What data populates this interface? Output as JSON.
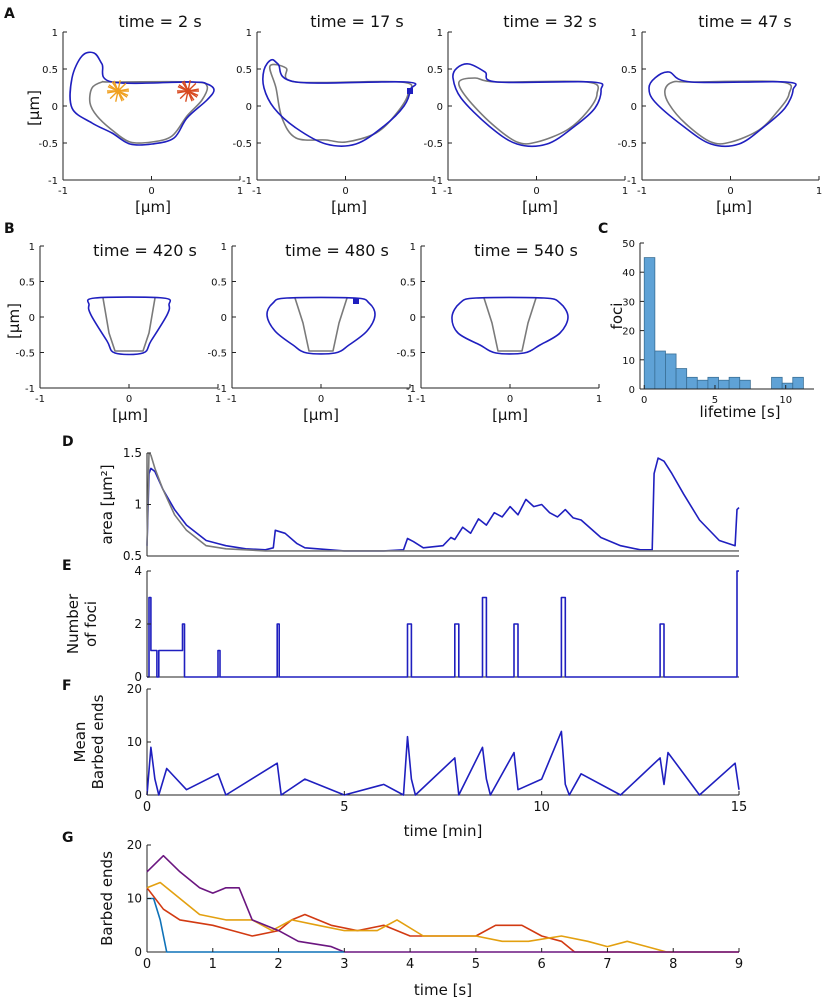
{
  "colors": {
    "blue": "#1f1fbf",
    "gray": "#7a7a7a",
    "hist": "#5fa2d6",
    "red": "#d23a12",
    "orange": "#e3a010",
    "purple": "#6b1680",
    "teal": "#0f72b8",
    "star_orange": "#f0a020",
    "star_red": "#d84a20"
  },
  "panels": {
    "A": {
      "label": "A",
      "times": [
        "time = 2 s",
        "time = 17 s",
        "time = 32 s",
        "time = 47 s"
      ],
      "xlabel": "[μm]",
      "ylabel": "[μm]",
      "xticks": [
        "-1",
        "0",
        "1"
      ],
      "yticks": [
        "-1",
        "-0.5",
        "0",
        "0.5",
        "1"
      ]
    },
    "B": {
      "label": "B",
      "times": [
        "time = 420 s",
        "time = 480 s",
        "time = 540 s"
      ],
      "xlabel": "[μm]",
      "ylabel": "[μm]",
      "xticks": [
        "-1",
        "0",
        "1"
      ],
      "yticks": [
        "-1",
        "-0.5",
        "0",
        "0.5",
        "1"
      ]
    }
  },
  "chart_data": [
    {
      "panel": "C",
      "type": "bar",
      "title": "",
      "xlabel": "lifetime [s]",
      "ylabel": "foci",
      "xlim": [
        -0.3,
        12
      ],
      "ylim": [
        0,
        50
      ],
      "xticks": [
        "0",
        "5",
        "10"
      ],
      "yticks": [
        "0",
        "10",
        "20",
        "30",
        "40",
        "50"
      ],
      "bin_width": 0.75,
      "bin_starts": [
        0,
        0.75,
        1.5,
        2.25,
        3.0,
        3.75,
        4.5,
        5.25,
        6.0,
        6.75,
        7.5,
        8.25,
        9.0,
        9.75,
        10.5,
        11.25
      ],
      "values": [
        45,
        13,
        12,
        7,
        4,
        3,
        4,
        3,
        4,
        3,
        0,
        0,
        4,
        2,
        4,
        0
      ]
    },
    {
      "panel": "D",
      "type": "line",
      "ylabel": "area [μm²]",
      "xlim": [
        0,
        15
      ],
      "ylim": [
        0.5,
        1.5
      ],
      "yticks": [
        "0.5",
        "1",
        "1.5"
      ],
      "series": [
        {
          "name": "area",
          "color": "blue",
          "x": [
            0,
            0.05,
            0.1,
            0.2,
            0.4,
            0.7,
            1.0,
            1.5,
            1.8,
            2.0,
            2.5,
            3.0,
            3.2,
            3.25,
            3.5,
            3.8,
            4.0,
            5.0,
            6.0,
            6.5,
            6.6,
            6.75,
            7.0,
            7.5,
            7.7,
            7.8,
            8.0,
            8.2,
            8.4,
            8.6,
            8.8,
            9.0,
            9.2,
            9.4,
            9.6,
            9.8,
            10.0,
            10.2,
            10.4,
            10.6,
            10.8,
            11.0,
            11.5,
            12.0,
            12.5,
            12.8,
            12.85,
            12.95,
            13.1,
            13.3,
            13.6,
            14.0,
            14.5,
            14.9,
            14.95,
            15.0
          ],
          "y": [
            0.6,
            1.3,
            1.35,
            1.32,
            1.15,
            0.95,
            0.8,
            0.65,
            0.62,
            0.6,
            0.57,
            0.56,
            0.58,
            0.75,
            0.72,
            0.62,
            0.58,
            0.55,
            0.55,
            0.56,
            0.67,
            0.64,
            0.58,
            0.6,
            0.68,
            0.66,
            0.78,
            0.72,
            0.86,
            0.8,
            0.92,
            0.88,
            0.98,
            0.9,
            1.05,
            0.98,
            1.0,
            0.92,
            0.88,
            0.95,
            0.87,
            0.85,
            0.68,
            0.6,
            0.56,
            0.56,
            1.3,
            1.45,
            1.42,
            1.3,
            1.1,
            0.85,
            0.65,
            0.6,
            0.95,
            0.97
          ]
        },
        {
          "name": "area (smooth)",
          "color": "gray",
          "x": [
            0,
            0.05,
            0.1,
            0.2,
            0.4,
            0.7,
            1.0,
            1.5,
            2.0,
            3.0,
            5.0,
            8.0,
            12.0,
            15.0
          ],
          "y": [
            0.6,
            1.5,
            1.48,
            1.35,
            1.15,
            0.9,
            0.75,
            0.6,
            0.57,
            0.55,
            0.55,
            0.55,
            0.55,
            0.55
          ]
        }
      ]
    },
    {
      "panel": "E",
      "type": "line",
      "ylabel": "Number\nof foci",
      "xlim": [
        0,
        15
      ],
      "ylim": [
        0,
        4
      ],
      "yticks": [
        "0",
        "2",
        "4"
      ],
      "series": [
        {
          "name": "foci",
          "color": "blue",
          "x": [
            0,
            0.05,
            0.05,
            0.1,
            0.1,
            0.25,
            0.25,
            0.3,
            0.3,
            0.9,
            0.9,
            0.95,
            0.95,
            1.8,
            1.8,
            1.85,
            1.85,
            3.3,
            3.3,
            3.35,
            3.35,
            6.6,
            6.6,
            6.7,
            6.7,
            7.8,
            7.8,
            7.9,
            7.9,
            8.5,
            8.5,
            8.6,
            8.6,
            9.3,
            9.3,
            9.4,
            9.4,
            10.5,
            10.5,
            10.6,
            10.6,
            13.0,
            13.0,
            13.1,
            13.1,
            14.95,
            14.95,
            15.0
          ],
          "y": [
            0,
            0,
            3,
            3,
            1,
            1,
            0,
            0,
            1,
            1,
            2,
            2,
            0,
            0,
            1,
            1,
            0,
            0,
            2,
            2,
            0,
            0,
            2,
            2,
            0,
            0,
            2,
            2,
            0,
            0,
            3,
            3,
            0,
            0,
            2,
            2,
            0,
            0,
            3,
            3,
            0,
            0,
            2,
            2,
            0,
            0,
            4,
            4
          ]
        }
      ]
    },
    {
      "panel": "F",
      "type": "line",
      "ylabel": "Mean\nBarbed ends",
      "xlabel": "time [min]",
      "xlim": [
        0,
        15
      ],
      "ylim": [
        0,
        20
      ],
      "xticks": [
        "0",
        "5",
        "10",
        "15"
      ],
      "yticks": [
        "0",
        "10",
        "20"
      ],
      "series": [
        {
          "name": "barbed ends",
          "color": "blue",
          "x": [
            0,
            0.1,
            0.2,
            0.3,
            0.5,
            1.0,
            1.8,
            2.0,
            3.3,
            3.4,
            4.0,
            5.0,
            6.0,
            6.5,
            6.6,
            6.7,
            6.8,
            7.8,
            7.9,
            8.5,
            8.6,
            8.7,
            9.3,
            9.4,
            10.0,
            10.5,
            10.6,
            10.7,
            11.0,
            12.0,
            13.0,
            13.1,
            13.2,
            14.0,
            14.9,
            15.0
          ],
          "y": [
            0,
            9,
            3,
            0,
            5,
            1,
            4,
            0,
            6,
            0,
            3,
            0,
            2,
            0,
            11,
            3,
            0,
            7,
            0,
            9,
            3,
            0,
            8,
            1,
            3,
            12,
            2,
            0,
            4,
            0,
            7,
            2,
            8,
            0,
            6,
            1
          ]
        }
      ]
    },
    {
      "panel": "G",
      "type": "line",
      "xlabel": "time [s]",
      "ylabel": "Barbed ends",
      "xlim": [
        0,
        9
      ],
      "ylim": [
        0,
        20
      ],
      "xticks": [
        "0",
        "1",
        "2",
        "3",
        "4",
        "5",
        "6",
        "7",
        "8",
        "9"
      ],
      "yticks": [
        "0",
        "10",
        "20"
      ],
      "series": [
        {
          "name": "red",
          "color": "red",
          "x": [
            0,
            0.25,
            0.5,
            1.0,
            1.3,
            1.6,
            2.0,
            2.2,
            2.4,
            2.8,
            3.2,
            3.6,
            4.0,
            4.5,
            5.0,
            5.3,
            5.7,
            6.0,
            6.3,
            6.5,
            9.0
          ],
          "y": [
            12,
            8,
            6,
            5,
            4,
            3,
            4,
            6,
            7,
            5,
            4,
            5,
            3,
            3,
            3,
            5,
            5,
            3,
            2,
            0,
            0
          ]
        },
        {
          "name": "orange",
          "color": "orange",
          "x": [
            0,
            0.2,
            0.5,
            0.8,
            1.2,
            1.6,
            1.9,
            2.2,
            2.6,
            3.0,
            3.5,
            3.8,
            4.2,
            4.6,
            5.0,
            5.4,
            5.8,
            6.3,
            6.7,
            7.0,
            7.3,
            7.6,
            7.9,
            8.0
          ],
          "y": [
            12,
            13,
            10,
            7,
            6,
            6,
            4,
            6,
            5,
            4,
            4,
            6,
            3,
            3,
            3,
            2,
            2,
            3,
            2,
            1,
            2,
            1,
            0,
            0
          ]
        },
        {
          "name": "purple",
          "color": "purple",
          "x": [
            0,
            0.25,
            0.5,
            0.8,
            1.0,
            1.2,
            1.4,
            1.6,
            2.0,
            2.3,
            2.8,
            3.0,
            3.2,
            9.0
          ],
          "y": [
            15,
            18,
            15,
            12,
            11,
            12,
            12,
            6,
            4,
            2,
            1,
            0,
            0,
            0
          ]
        },
        {
          "name": "teal",
          "color": "teal",
          "x": [
            0,
            0.1,
            0.2,
            0.3,
            3.0
          ],
          "y": [
            10,
            10,
            6,
            0,
            0
          ]
        }
      ]
    }
  ],
  "labels": {
    "D": "D",
    "E": "E",
    "F": "F",
    "G": "G",
    "C": "C"
  }
}
